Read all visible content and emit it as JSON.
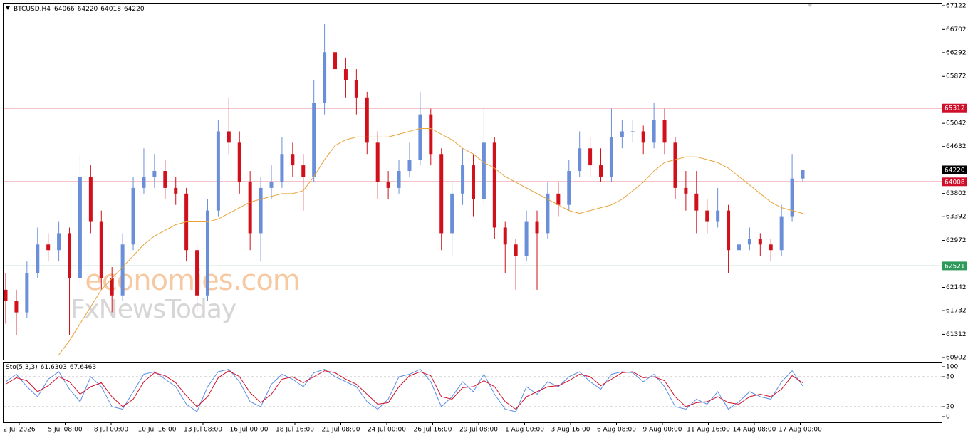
{
  "chart_data": {
    "type": "candlestick",
    "symbol": "BTCUSD,H4",
    "watermark": [
      "economies.com",
      "FxNewsToday"
    ],
    "x_labels": [
      "2 Jul 2026",
      "5 Jul 08:00",
      "8 Jul 00:00",
      "10 Jul 16:00",
      "13 Jul 08:00",
      "16 Jul 00:00",
      "18 Jul 16:00",
      "21 Jul 08:00",
      "24 Jul 00:00",
      "26 Jul 16:00",
      "29 Jul 08:00",
      "1 Aug 00:00",
      "3 Aug 16:00",
      "6 Aug 08:00",
      "9 Aug 00:00",
      "11 Aug 16:00",
      "14 Aug 08:00",
      "17 Aug 00:00"
    ],
    "bull_color": "#6a8fd8",
    "bear_color": "#d0101a",
    "open": [
      62100,
      61900,
      61700,
      62400,
      62900,
      62800,
      63100,
      62300,
      64100,
      63300,
      62300,
      62000,
      62900,
      63900,
      64100,
      64200,
      63900,
      63800,
      62800,
      62000,
      63500,
      64900,
      64700,
      64000,
      63100,
      63900,
      64000,
      64500,
      64300,
      64100,
      65400,
      66300,
      66000,
      65800,
      65500,
      64700,
      64000,
      63900,
      64200,
      64400,
      65200,
      64500,
      63100,
      63800,
      64300,
      63700,
      64700,
      63200,
      62900,
      62700,
      63300,
      63100,
      63800,
      63600,
      64200,
      64600,
      64300,
      64100,
      64800,
      64900,
      64900,
      64700,
      65100,
      64700,
      63900,
      63800,
      63500,
      63300,
      63500,
      62800,
      62900,
      63000,
      62900,
      62800,
      63400,
      64066
    ],
    "high": [
      62400,
      62100,
      62600,
      63200,
      63100,
      63300,
      63200,
      64500,
      64300,
      63500,
      62500,
      63100,
      64100,
      64600,
      64500,
      64400,
      64100,
      63900,
      62900,
      63700,
      65100,
      65500,
      64900,
      64200,
      64100,
      64300,
      64800,
      64700,
      64500,
      65800,
      66800,
      66600,
      66200,
      66000,
      65600,
      64900,
      64200,
      64400,
      64700,
      65600,
      65300,
      64600,
      64000,
      64600,
      64500,
      65300,
      64800,
      63300,
      63000,
      63500,
      63500,
      64000,
      64000,
      64400,
      64900,
      64800,
      64600,
      65300,
      65100,
      65100,
      65000,
      65400,
      65300,
      64800,
      64200,
      64200,
      63700,
      63900,
      63600,
      63100,
      63200,
      63100,
      63000,
      63600,
      64500,
      64220
    ],
    "low": [
      61500,
      61300,
      61600,
      62300,
      62600,
      62600,
      61300,
      62200,
      63100,
      62100,
      61700,
      61900,
      62800,
      63800,
      63900,
      63700,
      63600,
      62600,
      61700,
      61900,
      63400,
      64500,
      63800,
      62800,
      62600,
      63700,
      63900,
      64100,
      63500,
      64000,
      65200,
      65800,
      65500,
      65200,
      64500,
      63700,
      63700,
      63800,
      64100,
      64300,
      64300,
      62800,
      62700,
      63600,
      63400,
      63600,
      63000,
      62400,
      62100,
      62600,
      62100,
      63000,
      63400,
      63500,
      64100,
      64100,
      64000,
      64000,
      64600,
      64700,
      64500,
      64600,
      64500,
      63700,
      63500,
      63100,
      63100,
      63200,
      62400,
      62700,
      62800,
      62700,
      62600,
      62700,
      63300,
      64018
    ],
    "close": [
      61900,
      61700,
      62400,
      62900,
      62800,
      63100,
      62300,
      64100,
      63300,
      62300,
      62000,
      62900,
      63900,
      64100,
      64200,
      63900,
      63800,
      62800,
      62000,
      63500,
      64900,
      64700,
      64000,
      63100,
      63900,
      64000,
      64500,
      64300,
      64100,
      65400,
      66300,
      66000,
      65800,
      65500,
      64700,
      64000,
      63900,
      64200,
      64400,
      65200,
      64500,
      63100,
      63800,
      64300,
      63700,
      64700,
      63200,
      62900,
      62700,
      63300,
      63100,
      63800,
      63600,
      64200,
      64600,
      64300,
      64100,
      64800,
      64900,
      64900,
      64700,
      65100,
      64700,
      63900,
      63800,
      63500,
      63300,
      63500,
      62800,
      62900,
      63000,
      62900,
      62800,
      63400,
      64066,
      64220
    ],
    "ma": {
      "color": "#e8a33a",
      "values": [
        null,
        null,
        null,
        null,
        null,
        60950,
        61200,
        61500,
        61800,
        62100,
        62300,
        62500,
        62700,
        62900,
        63050,
        63150,
        63250,
        63300,
        63300,
        63300,
        63350,
        63450,
        63550,
        63650,
        63700,
        63750,
        63800,
        63800,
        63850,
        64100,
        64400,
        64650,
        64750,
        64800,
        64800,
        64800,
        64800,
        64850,
        64900,
        64950,
        64950,
        64850,
        64750,
        64600,
        64500,
        64350,
        64250,
        64100,
        64000,
        63900,
        63800,
        63700,
        63600,
        63500,
        63450,
        63500,
        63550,
        63600,
        63700,
        63850,
        64000,
        64200,
        64350,
        64400,
        64450,
        64450,
        64400,
        64350,
        64250,
        64100,
        63950,
        63800,
        63650,
        63550,
        63500,
        63450
      ]
    },
    "levels": [
      {
        "value": 65312,
        "color": "#d0102a"
      },
      {
        "value": 64008,
        "color": "#d0102a"
      },
      {
        "value": 62521,
        "color": "#2e9a5a"
      }
    ],
    "current_color": "#c0c0c0",
    "ylim": [
      60864,
      67172
    ],
    "yticks": [
      67122,
      66702,
      66292,
      65872,
      65042,
      64632,
      63802,
      63392,
      62972,
      62142,
      61732,
      61312,
      60902
    ],
    "indicator": {
      "name": "Sto(5,3,3)",
      "k": {
        "color": "#5b8ee6",
        "values": [
          70,
          85,
          60,
          40,
          75,
          90,
          55,
          30,
          80,
          60,
          20,
          15,
          50,
          85,
          90,
          75,
          60,
          25,
          10,
          60,
          90,
          95,
          70,
          30,
          20,
          65,
          85,
          75,
          60,
          88,
          95,
          80,
          70,
          60,
          30,
          15,
          35,
          80,
          85,
          95,
          70,
          20,
          40,
          70,
          50,
          85,
          45,
          15,
          10,
          60,
          45,
          70,
          60,
          80,
          90,
          70,
          55,
          85,
          90,
          88,
          70,
          85,
          60,
          20,
          15,
          35,
          25,
          50,
          15,
          30,
          50,
          40,
          35,
          70,
          92,
          61.6303
        ]
      },
      "d": {
        "color": "#d0102a",
        "values": [
          65,
          78,
          72,
          50,
          62,
          80,
          70,
          45,
          60,
          68,
          40,
          20,
          35,
          70,
          88,
          82,
          68,
          42,
          20,
          40,
          78,
          92,
          80,
          48,
          28,
          45,
          75,
          80,
          68,
          80,
          92,
          88,
          75,
          65,
          45,
          25,
          28,
          60,
          82,
          90,
          82,
          40,
          35,
          58,
          60,
          72,
          60,
          30,
          15,
          40,
          50,
          60,
          62,
          72,
          85,
          80,
          62,
          75,
          88,
          90,
          78,
          80,
          72,
          40,
          20,
          28,
          30,
          40,
          28,
          25,
          40,
          45,
          40,
          55,
          82,
          67.6463
        ]
      },
      "ylim": [
        0,
        100
      ],
      "yticks": [
        100,
        80,
        20,
        0
      ],
      "levels": [
        80,
        20
      ]
    }
  }
}
